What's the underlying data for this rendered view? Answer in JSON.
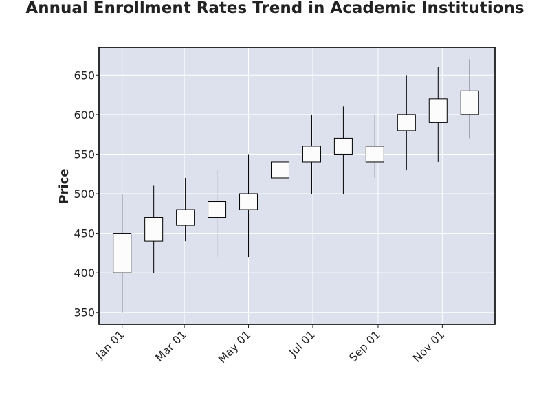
{
  "chart_data": {
    "type": "candlestick",
    "title": "Annual Enrollment Rates Trend in Academic Institutions",
    "xlabel": "",
    "ylabel": "Price",
    "ylim": [
      335,
      685
    ],
    "yticks": [
      350,
      400,
      450,
      500,
      550,
      600,
      650
    ],
    "xlim": [
      "2021-12-10",
      "2022-12-21"
    ],
    "xticks": [
      {
        "date": "2022-01-01",
        "label": "Jan 01"
      },
      {
        "date": "2022-03-01",
        "label": "Mar 01"
      },
      {
        "date": "2022-05-01",
        "label": "May 01"
      },
      {
        "date": "2022-07-01",
        "label": "Jul 01"
      },
      {
        "date": "2022-09-01",
        "label": "Sep 01"
      },
      {
        "date": "2022-11-01",
        "label": "Nov 01"
      }
    ],
    "grid": true,
    "colors": {
      "plot_bg": "#dde1ee",
      "grid": "#ffffff",
      "candle_fill": "#fcfcfc",
      "candle_edge": "#000000"
    },
    "candles": [
      {
        "date": "2022-01-01",
        "open": 400,
        "high": 500,
        "low": 350,
        "close": 450
      },
      {
        "date": "2022-01-31",
        "open": 440,
        "high": 510,
        "low": 400,
        "close": 470
      },
      {
        "date": "2022-03-02",
        "open": 460,
        "high": 520,
        "low": 440,
        "close": 480
      },
      {
        "date": "2022-04-01",
        "open": 470,
        "high": 530,
        "low": 420,
        "close": 490
      },
      {
        "date": "2022-05-01",
        "open": 480,
        "high": 550,
        "low": 420,
        "close": 500
      },
      {
        "date": "2022-05-31",
        "open": 520,
        "high": 580,
        "low": 480,
        "close": 540
      },
      {
        "date": "2022-06-30",
        "open": 540,
        "high": 600,
        "low": 500,
        "close": 560
      },
      {
        "date": "2022-07-30",
        "open": 550,
        "high": 610,
        "low": 500,
        "close": 570
      },
      {
        "date": "2022-08-29",
        "open": 540,
        "high": 600,
        "low": 520,
        "close": 560
      },
      {
        "date": "2022-09-28",
        "open": 580,
        "high": 650,
        "low": 530,
        "close": 600
      },
      {
        "date": "2022-10-28",
        "open": 590,
        "high": 660,
        "low": 540,
        "close": 620
      },
      {
        "date": "2022-11-27",
        "open": 600,
        "high": 670,
        "low": 570,
        "close": 630
      }
    ]
  }
}
